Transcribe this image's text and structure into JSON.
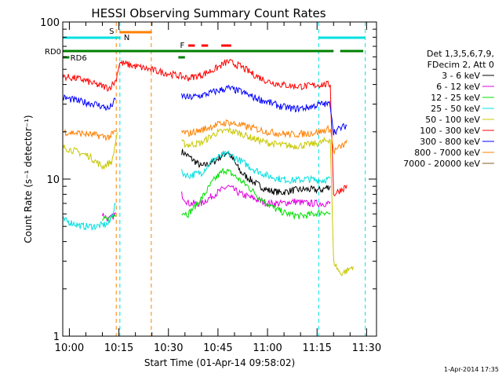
{
  "chart_data": {
    "type": "line",
    "title": "HESSI Observing Summary Count Rates",
    "xlabel": "Start Time (01-Apr-14 09:58:02)",
    "ylabel": "Count Rate (s⁻¹ detector⁻¹)",
    "y_scale": "log",
    "ylim": [
      1,
      100
    ],
    "y_ticks": [
      {
        "value": 1,
        "label": "1"
      },
      {
        "value": 10,
        "label": "10"
      },
      {
        "value": 100,
        "label": "100"
      }
    ],
    "x_range_min": [
      -2,
      93
    ],
    "x_ticks": [
      {
        "min": 0,
        "label": "10:00"
      },
      {
        "min": 15,
        "label": "10:15"
      },
      {
        "min": 30,
        "label": "10:30"
      },
      {
        "min": 45,
        "label": "10:45"
      },
      {
        "min": 60,
        "label": "11:00"
      },
      {
        "min": 75,
        "label": "11:15"
      },
      {
        "min": 90,
        "label": "11:30"
      }
    ],
    "legend_title": [
      "Det 1,3,5,6,7,9,",
      "FDecim 2, Att 0"
    ],
    "footer_date": "1-Apr-2014 17:35",
    "series": [
      {
        "name": "3 - 6 keV",
        "color": "#000000",
        "points": [
          [
            -2,
            null
          ],
          [
            12,
            null
          ],
          [
            25,
            null
          ],
          [
            34,
            15
          ],
          [
            36,
            14
          ],
          [
            40,
            12
          ],
          [
            44,
            13
          ],
          [
            48,
            15
          ],
          [
            52,
            11
          ],
          [
            56,
            9.5
          ],
          [
            60,
            8.5
          ],
          [
            64,
            8.2
          ],
          [
            68,
            8.5
          ],
          [
            72,
            8.6
          ],
          [
            76,
            8.5
          ],
          [
            79,
            9
          ]
        ]
      },
      {
        "name": "6 - 12 keV",
        "color": "#e000e0",
        "points": [
          [
            10,
            6
          ],
          [
            12,
            5.5
          ],
          [
            14,
            6
          ],
          [
            15.2,
            null
          ],
          [
            34,
            8
          ],
          [
            36,
            7
          ],
          [
            40,
            7
          ],
          [
            44,
            8
          ],
          [
            48,
            9
          ],
          [
            52,
            8
          ],
          [
            56,
            7.5
          ],
          [
            60,
            7
          ],
          [
            64,
            7
          ],
          [
            68,
            7.2
          ],
          [
            72,
            7
          ],
          [
            76,
            7
          ],
          [
            79,
            7
          ]
        ]
      },
      {
        "name": "12 - 25 keV",
        "color": "#00e000",
        "points": [
          [
            10,
            5.5
          ],
          [
            12,
            5.5
          ],
          [
            14,
            6
          ],
          [
            15.2,
            null
          ],
          [
            34,
            6.2
          ],
          [
            36,
            6
          ],
          [
            40,
            7.5
          ],
          [
            44,
            10
          ],
          [
            47,
            11.5
          ],
          [
            50,
            10.5
          ],
          [
            54,
            9
          ],
          [
            58,
            7.5
          ],
          [
            62,
            6.5
          ],
          [
            66,
            6
          ],
          [
            70,
            5.8
          ],
          [
            74,
            6
          ],
          [
            77,
            6.2
          ],
          [
            79,
            6
          ]
        ]
      },
      {
        "name": "25 - 50 keV",
        "color": "#00e0e0",
        "points": [
          [
            -2,
            5.5
          ],
          [
            4,
            5
          ],
          [
            8,
            5
          ],
          [
            12,
            5.2
          ],
          [
            14,
            7
          ],
          [
            15.2,
            null
          ],
          [
            34,
            11
          ],
          [
            36,
            10.5
          ],
          [
            40,
            11
          ],
          [
            44,
            13.5
          ],
          [
            48,
            14.5
          ],
          [
            52,
            13
          ],
          [
            56,
            11.5
          ],
          [
            60,
            10.5
          ],
          [
            64,
            10
          ],
          [
            68,
            9.8
          ],
          [
            72,
            10
          ],
          [
            76,
            9.8
          ],
          [
            79,
            10
          ]
        ]
      },
      {
        "name": "50 - 100 keV",
        "color": "#c8c800",
        "points": [
          [
            -2,
            16
          ],
          [
            2,
            15
          ],
          [
            6,
            14
          ],
          [
            10,
            12
          ],
          [
            13,
            13
          ],
          [
            14.5,
            20
          ],
          [
            15.2,
            null
          ],
          [
            34,
            17
          ],
          [
            36,
            16.5
          ],
          [
            40,
            17
          ],
          [
            44,
            19.5
          ],
          [
            48,
            20.5
          ],
          [
            52,
            19.5
          ],
          [
            56,
            18
          ],
          [
            60,
            17
          ],
          [
            64,
            16.5
          ],
          [
            68,
            16.2
          ],
          [
            72,
            16.5
          ],
          [
            76,
            17
          ],
          [
            79,
            18
          ],
          [
            80,
            3
          ],
          [
            82,
            2.5
          ],
          [
            84,
            2.6
          ],
          [
            86,
            2.8
          ]
        ]
      },
      {
        "name": "100 - 300 keV",
        "color": "#ff0000",
        "points": [
          [
            -2,
            45
          ],
          [
            4,
            43
          ],
          [
            8,
            40
          ],
          [
            12,
            38
          ],
          [
            14,
            42
          ],
          [
            15.2,
            55
          ],
          [
            34,
            45
          ],
          [
            36,
            44
          ],
          [
            40,
            46
          ],
          [
            44,
            50
          ],
          [
            48,
            56
          ],
          [
            52,
            52
          ],
          [
            56,
            46
          ],
          [
            60,
            42
          ],
          [
            64,
            40
          ],
          [
            68,
            39
          ],
          [
            72,
            39
          ],
          [
            76,
            40
          ],
          [
            79,
            40
          ],
          [
            80,
            8
          ],
          [
            82,
            8.5
          ],
          [
            84,
            9
          ]
        ]
      },
      {
        "name": "300 - 800 keV",
        "color": "#0000ff",
        "points": [
          [
            -2,
            33
          ],
          [
            4,
            31
          ],
          [
            8,
            30
          ],
          [
            12,
            28
          ],
          [
            14,
            32
          ],
          [
            15.2,
            null
          ],
          [
            34,
            34
          ],
          [
            36,
            33
          ],
          [
            40,
            34
          ],
          [
            44,
            36
          ],
          [
            48,
            38
          ],
          [
            52,
            36
          ],
          [
            56,
            33
          ],
          [
            60,
            31
          ],
          [
            64,
            29
          ],
          [
            68,
            28
          ],
          [
            72,
            28.5
          ],
          [
            76,
            30
          ],
          [
            79,
            30
          ],
          [
            80,
            20
          ],
          [
            82,
            21
          ],
          [
            84,
            22
          ]
        ]
      },
      {
        "name": "800 - 7000 keV",
        "color": "#ff8000",
        "points": [
          [
            -2,
            20
          ],
          [
            4,
            19.5
          ],
          [
            8,
            19
          ],
          [
            12,
            18.5
          ],
          [
            14,
            20
          ],
          [
            15.2,
            null
          ],
          [
            34,
            20
          ],
          [
            36,
            19.5
          ],
          [
            40,
            20.5
          ],
          [
            44,
            22
          ],
          [
            48,
            23
          ],
          [
            52,
            22
          ],
          [
            56,
            21
          ],
          [
            60,
            20
          ],
          [
            64,
            19.5
          ],
          [
            68,
            19.2
          ],
          [
            72,
            19.5
          ],
          [
            76,
            20
          ],
          [
            79,
            21
          ],
          [
            80,
            15
          ],
          [
            82,
            16
          ],
          [
            84,
            17
          ]
        ]
      },
      {
        "name": "7000 - 20000 keV",
        "color": "#7f5f1f",
        "points": []
      }
    ],
    "flag_bars": [
      {
        "label": "S",
        "color": "#ff8000",
        "start": 15.2,
        "end": 25
      },
      {
        "label": "N",
        "color": "#00e0e0",
        "start": -2,
        "end": 15.5
      },
      {
        "label": "N",
        "color": "#00e0e0",
        "start": 75.5,
        "end": 89.5
      },
      {
        "label": "F",
        "color": "#ff0000",
        "start": 36,
        "end": 38
      },
      {
        "label": "F",
        "color": "#ff0000",
        "start": 40,
        "end": 42
      },
      {
        "label": "F",
        "color": "#ff0000",
        "start": 46,
        "end": 49
      },
      {
        "label": "RD0",
        "color": "#008000",
        "start": -2,
        "end": 80
      },
      {
        "label": "RD0",
        "color": "#008000",
        "start": 82,
        "end": 89
      },
      {
        "label": "RD6",
        "color": "#008000",
        "start": -2,
        "end": 0
      },
      {
        "label": "RD6",
        "color": "#008000",
        "start": 33,
        "end": 35
      }
    ],
    "vertical_markers": [
      {
        "min": 14.2,
        "color": "#ff8000"
      },
      {
        "min": 24.8,
        "color": "#ff8000"
      },
      {
        "min": 15.3,
        "color": "#00e0e0"
      },
      {
        "min": 75.5,
        "color": "#00e0e0"
      },
      {
        "min": 89.6,
        "color": "#00e0e0"
      }
    ],
    "labels": {
      "S": "S",
      "N": "N",
      "F": "F",
      "RD0": "RD0",
      "RD6": "RD6"
    },
    "grid": false
  }
}
